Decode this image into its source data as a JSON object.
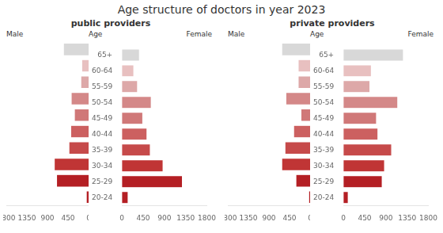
{
  "chart_data": [
    {
      "type": "bar",
      "orientation": "horizontal",
      "title": "Age structure of doctors in year 2023",
      "subtitle": "public providers",
      "ylabel": "Age",
      "categories": [
        "20-24",
        "25-29",
        "30-34",
        "35-39",
        "40-44",
        "45-49",
        "50-54",
        "55-59",
        "60-64",
        "65+"
      ],
      "colors": [
        "#b41f24",
        "#b41f24",
        "#c03535",
        "#c64a4a",
        "#cc6060",
        "#d07878",
        "#d48888",
        "#dda8a8",
        "#e8c0c0",
        "#d8d8d8"
      ],
      "series": [
        {
          "name": "Male",
          "values": [
            50,
            700,
            750,
            430,
            390,
            310,
            380,
            170,
            150,
            550
          ]
        },
        {
          "name": "Female",
          "values": [
            130,
            1280,
            870,
            600,
            530,
            440,
            620,
            330,
            250,
            370
          ]
        }
      ],
      "xlim": [
        0,
        1800
      ],
      "xticks": [
        0,
        450,
        900,
        1350,
        1800
      ],
      "grid": false
    },
    {
      "type": "bar",
      "orientation": "horizontal",
      "subtitle": "private providers",
      "ylabel": "Age",
      "categories": [
        "20-24",
        "25-29",
        "30-34",
        "35-39",
        "40-44",
        "45-49",
        "50-54",
        "55-59",
        "60-64",
        "65+"
      ],
      "colors": [
        "#b41f24",
        "#b41f24",
        "#c03535",
        "#c64a4a",
        "#cc6060",
        "#d07878",
        "#d48888",
        "#dda8a8",
        "#e8c0c0",
        "#d8d8d8"
      ],
      "series": [
        {
          "name": "Male",
          "values": [
            30,
            310,
            620,
            550,
            360,
            200,
            530,
            260,
            260,
            620
          ]
        },
        {
          "name": "Female",
          "values": [
            100,
            820,
            870,
            1020,
            730,
            700,
            1150,
            560,
            590,
            1270
          ]
        }
      ],
      "xlim": [
        0,
        1800
      ],
      "xticks": [
        0,
        450,
        900,
        1350,
        1800
      ],
      "grid": false
    }
  ]
}
